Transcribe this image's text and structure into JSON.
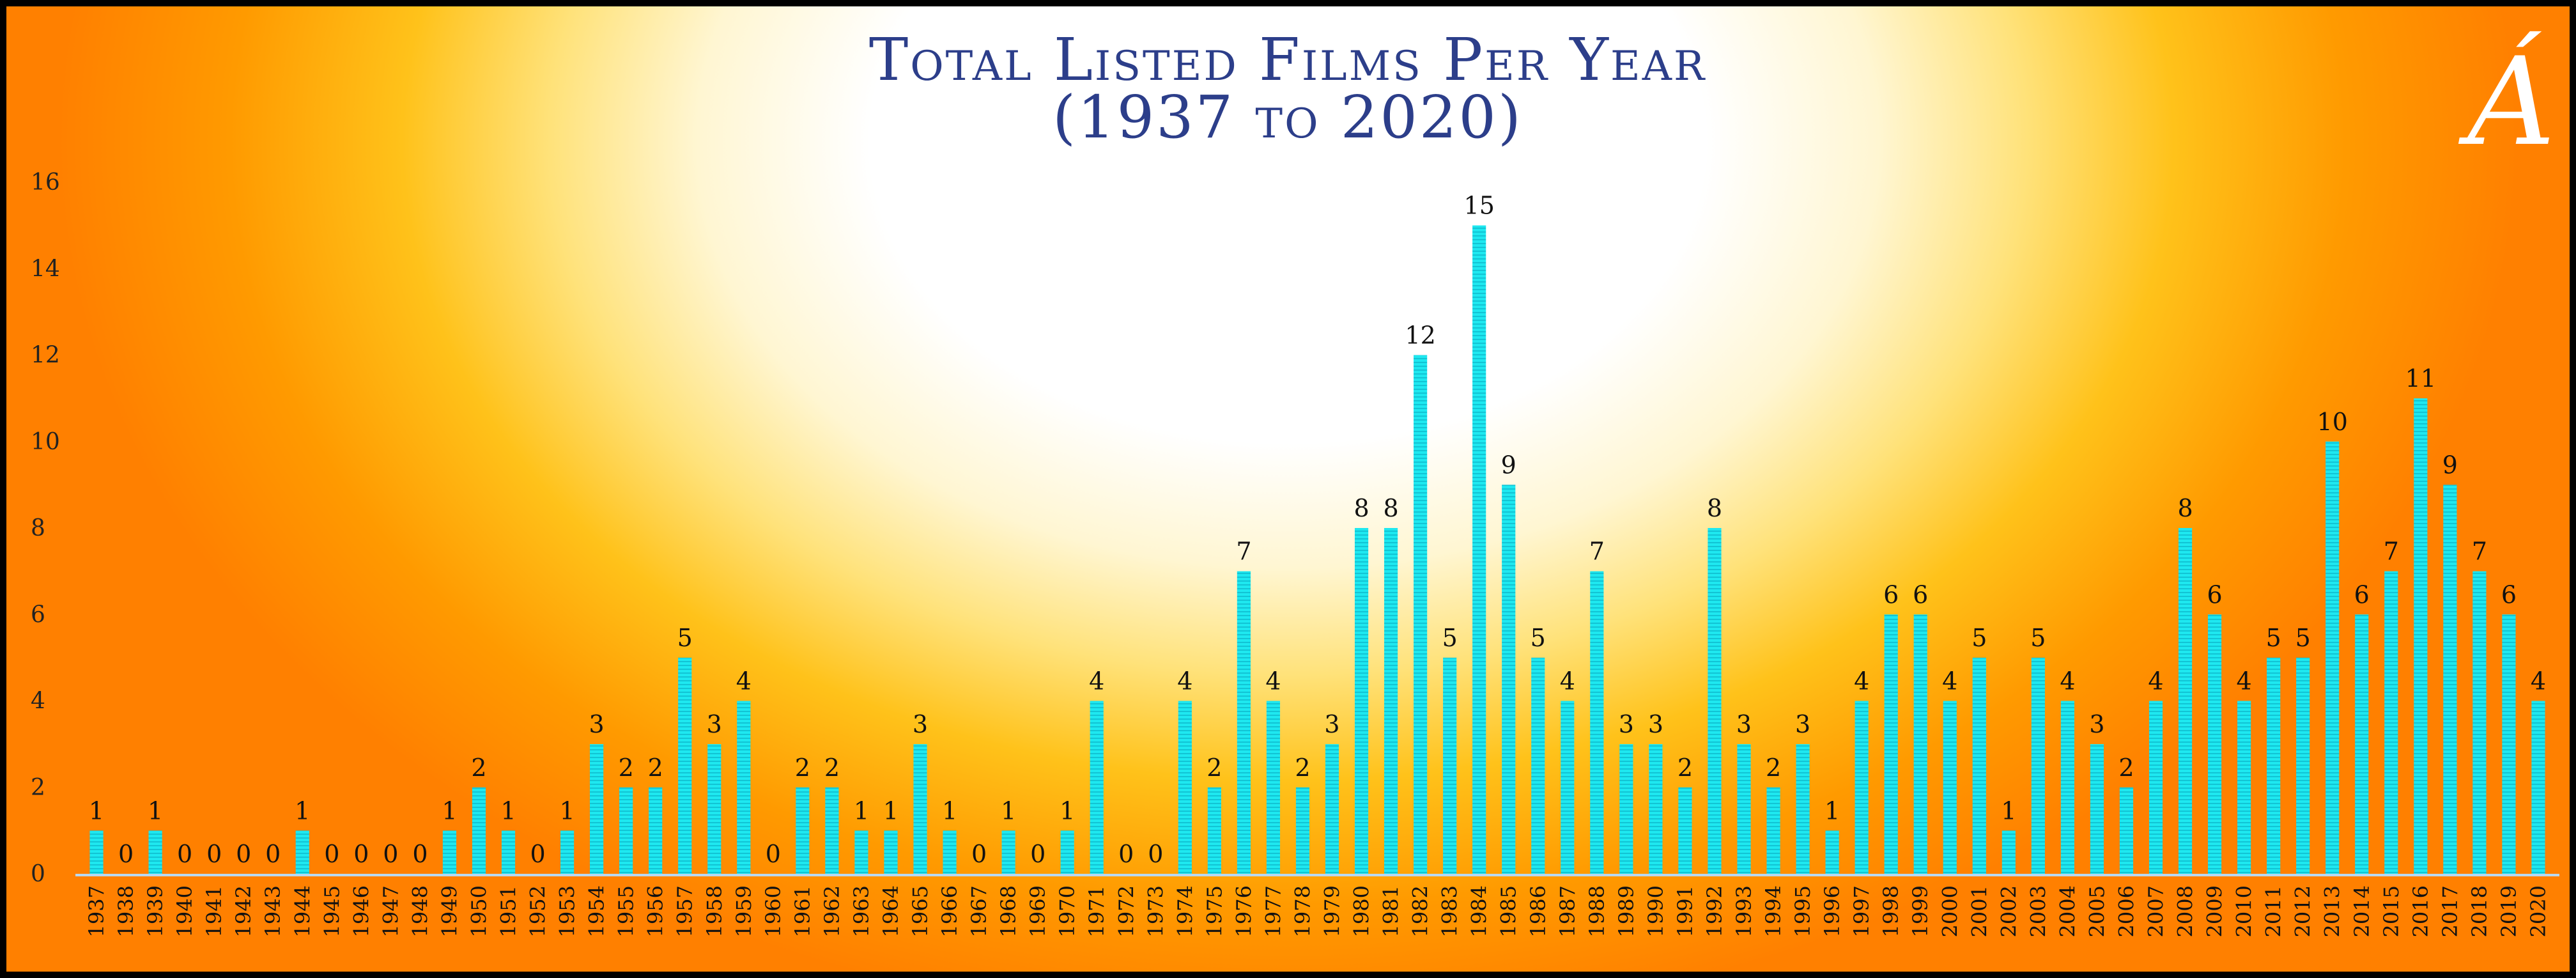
{
  "chart_data": {
    "type": "bar",
    "title": "Total Listed Films Per Year",
    "subtitle": "(1937 to 2020)",
    "xlabel": "",
    "ylabel": "",
    "ylim": [
      0,
      16
    ],
    "yticks": [
      0,
      2,
      4,
      6,
      8,
      10,
      12,
      14,
      16
    ],
    "grid": false,
    "bar_color": "#1ee8f0",
    "categories": [
      "1937",
      "1938",
      "1939",
      "1940",
      "1941",
      "1942",
      "1943",
      "1944",
      "1945",
      "1946",
      "1947",
      "1948",
      "1949",
      "1950",
      "1951",
      "1952",
      "1953",
      "1954",
      "1955",
      "1956",
      "1957",
      "1958",
      "1959",
      "1960",
      "1961",
      "1962",
      "1963",
      "1964",
      "1965",
      "1966",
      "1967",
      "1968",
      "1969",
      "1970",
      "1971",
      "1972",
      "1973",
      "1974",
      "1975",
      "1976",
      "1977",
      "1978",
      "1979",
      "1980",
      "1981",
      "1982",
      "1983",
      "1984",
      "1985",
      "1986",
      "1987",
      "1988",
      "1989",
      "1990",
      "1991",
      "1992",
      "1993",
      "1994",
      "1995",
      "1996",
      "1997",
      "1998",
      "1999",
      "2000",
      "2001",
      "2002",
      "2003",
      "2004",
      "2005",
      "2006",
      "2007",
      "2008",
      "2009",
      "2010",
      "2011",
      "2012",
      "2013",
      "2014",
      "2015",
      "2016",
      "2017",
      "2018",
      "2019",
      "2020"
    ],
    "values": [
      1,
      0,
      1,
      0,
      0,
      0,
      0,
      1,
      0,
      0,
      0,
      0,
      1,
      2,
      1,
      0,
      1,
      3,
      2,
      2,
      5,
      3,
      4,
      0,
      2,
      2,
      1,
      1,
      3,
      1,
      0,
      1,
      0,
      1,
      4,
      0,
      0,
      4,
      2,
      7,
      4,
      2,
      3,
      8,
      8,
      12,
      5,
      15,
      9,
      5,
      4,
      7,
      3,
      3,
      2,
      8,
      3,
      2,
      3,
      1,
      4,
      6,
      6,
      4,
      5,
      1,
      5,
      4,
      3,
      2,
      4,
      8,
      6,
      4,
      5,
      5,
      10,
      6,
      7,
      11,
      9,
      7,
      6,
      4
    ]
  },
  "logo": {
    "text": "Á"
  }
}
